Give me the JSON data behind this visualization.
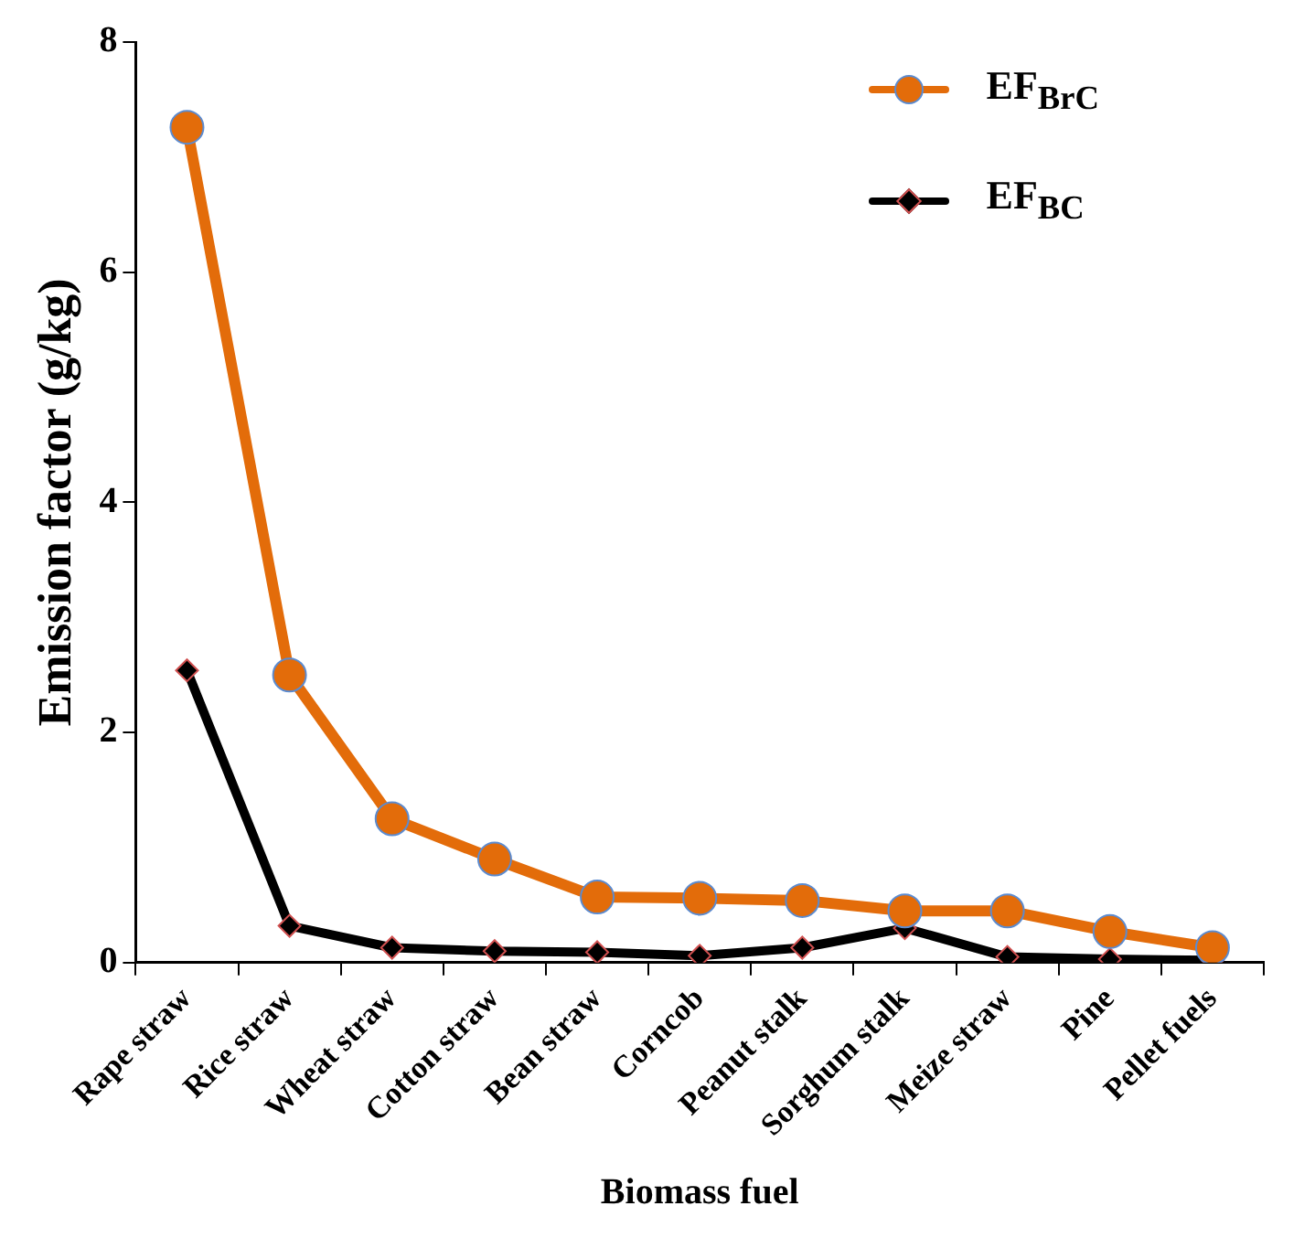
{
  "chart_data": {
    "type": "line",
    "xlabel": "Biomass fuel",
    "ylabel": "Emission factor (g/kg)",
    "categories": [
      "Rape straw",
      "Rice straw",
      "Wheat straw",
      "Cotton straw",
      "Bean straw",
      "Corncob",
      "Peanut stalk",
      "Sorghum stalk",
      "Meize straw",
      "Pine",
      "Pellet fuels"
    ],
    "series": [
      {
        "name": "EF$_{BrC}$",
        "color": "#e36c0a",
        "marker": "circle",
        "values": [
          7.26,
          2.5,
          1.25,
          0.9,
          0.57,
          0.56,
          0.54,
          0.45,
          0.45,
          0.27,
          0.13
        ]
      },
      {
        "name": "EF$_{BC}$",
        "color": "#000000",
        "marker": "diamond",
        "values": [
          2.54,
          0.32,
          0.13,
          0.1,
          0.09,
          0.06,
          0.13,
          0.3,
          0.05,
          0.03,
          0.02
        ]
      }
    ],
    "ylim": [
      0,
      8
    ],
    "yticks": [
      0,
      2,
      4,
      6,
      8
    ],
    "grid": false,
    "legend": "top right"
  }
}
